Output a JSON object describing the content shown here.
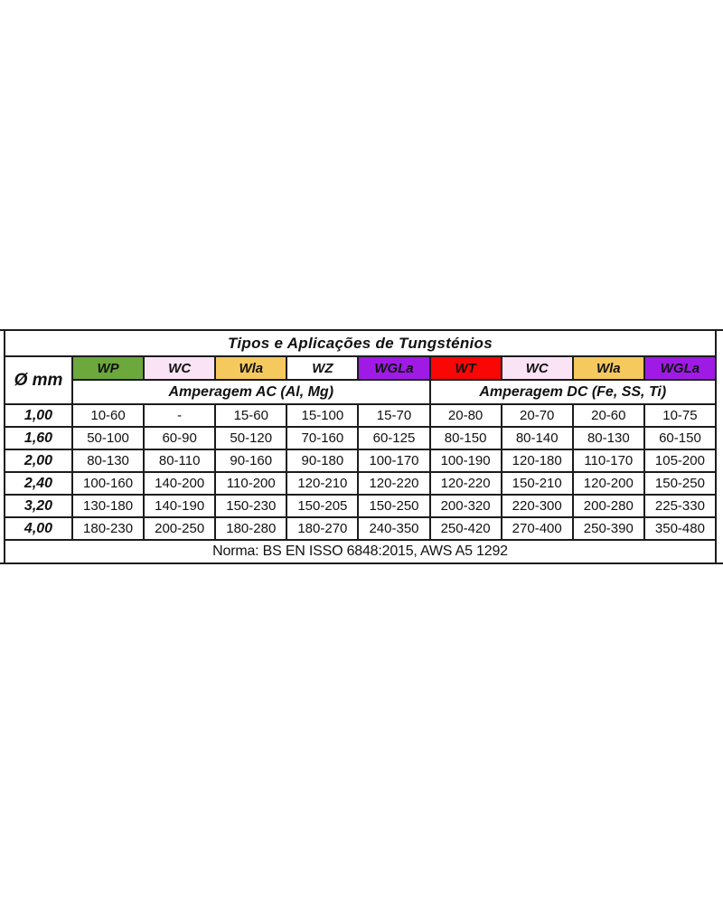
{
  "table": {
    "title": "Tipos e Aplicações de Tungsténios",
    "diameter_header": "Ø mm",
    "types": [
      {
        "label": "WP",
        "color": "#6CA83C"
      },
      {
        "label": "WC",
        "color": "#FBE3F6"
      },
      {
        "label": "Wla",
        "color": "#F6C95F"
      },
      {
        "label": "WZ",
        "color": "#FFFFFF"
      },
      {
        "label": "WGLa",
        "color": "#A01AE6"
      },
      {
        "label": "WT",
        "color": "#F90606"
      },
      {
        "label": "WC",
        "color": "#FBE3F6"
      },
      {
        "label": "Wla",
        "color": "#F6C95F"
      },
      {
        "label": "WGLa",
        "color": "#A01AE6"
      }
    ],
    "groups": [
      {
        "label": "Amperagem AC (Al, Mg)"
      },
      {
        "label": "Amperagem DC (Fe, SS, Ti)"
      }
    ],
    "rows": [
      {
        "diameter": "1,00",
        "values": [
          "10-60",
          "-",
          "15-60",
          "15-100",
          "15-70",
          "20-80",
          "20-70",
          "20-60",
          "10-75"
        ]
      },
      {
        "diameter": "1,60",
        "values": [
          "50-100",
          "60-90",
          "50-120",
          "70-160",
          "60-125",
          "80-150",
          "80-140",
          "80-130",
          "60-150"
        ]
      },
      {
        "diameter": "2,00",
        "values": [
          "80-130",
          "80-110",
          "90-160",
          "90-180",
          "100-170",
          "100-190",
          "120-180",
          "110-170",
          "105-200"
        ]
      },
      {
        "diameter": "2,40",
        "values": [
          "100-160",
          "140-200",
          "110-200",
          "120-210",
          "120-220",
          "120-220",
          "150-210",
          "120-200",
          "150-250"
        ]
      },
      {
        "diameter": "3,20",
        "values": [
          "130-180",
          "140-190",
          "150-230",
          "150-205",
          "150-250",
          "200-320",
          "220-300",
          "200-280",
          "225-330"
        ]
      },
      {
        "diameter": "4,00",
        "values": [
          "180-230",
          "200-250",
          "180-280",
          "180-270",
          "240-350",
          "250-420",
          "270-400",
          "250-390",
          "350-480"
        ]
      }
    ],
    "footer": "Norma: BS EN ISSO 6848:2015, AWS A5 1292",
    "colors": {
      "border": "#1C1C1C",
      "background": "#FFFFFF"
    }
  }
}
